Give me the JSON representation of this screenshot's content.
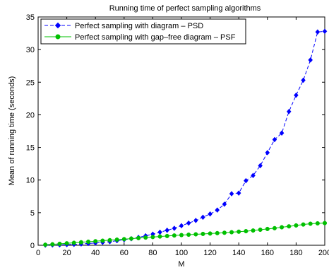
{
  "chart_data": {
    "type": "line",
    "title": "Running time of perfect sampling algorithms",
    "xlabel": "M",
    "ylabel": "Mean of running time (seconds)",
    "xlim": [
      0,
      200
    ],
    "ylim": [
      0,
      35
    ],
    "xticks": [
      "0",
      "20",
      "40",
      "60",
      "80",
      "100",
      "120",
      "140",
      "160",
      "180",
      "200"
    ],
    "yticks": [
      "0",
      "5",
      "10",
      "15",
      "20",
      "25",
      "30",
      "35"
    ],
    "grid": false,
    "legend_position": "top-left",
    "x": [
      5,
      10,
      15,
      20,
      25,
      30,
      35,
      40,
      45,
      50,
      55,
      60,
      65,
      70,
      75,
      80,
      85,
      90,
      95,
      100,
      105,
      110,
      115,
      120,
      125,
      130,
      135,
      140,
      145,
      150,
      155,
      160,
      165,
      170,
      175,
      180,
      185,
      190,
      195,
      200
    ],
    "series": [
      {
        "name": "Perfect sampling with diagram – PSD",
        "color": "#0000ff",
        "line_style": "dashed",
        "marker": "diamond",
        "values": [
          0.02,
          0.04,
          0.06,
          0.1,
          0.14,
          0.2,
          0.27,
          0.35,
          0.45,
          0.55,
          0.7,
          0.85,
          1.0,
          1.2,
          1.45,
          1.7,
          2.0,
          2.3,
          2.6,
          3.0,
          3.4,
          3.8,
          4.3,
          4.8,
          5.4,
          6.3,
          7.9,
          8.0,
          9.9,
          10.7,
          12.2,
          14.2,
          16.2,
          17.2,
          20.5,
          23.0,
          25.3,
          28.4,
          32.7,
          32.8
        ]
      },
      {
        "name": "Perfect sampling with gap–free diagram – PSF",
        "color": "#00c000",
        "line_style": "solid",
        "marker": "circle",
        "values": [
          0.08,
          0.15,
          0.22,
          0.3,
          0.38,
          0.46,
          0.54,
          0.62,
          0.7,
          0.78,
          0.86,
          0.94,
          1.02,
          1.1,
          1.18,
          1.26,
          1.34,
          1.42,
          1.5,
          1.56,
          1.62,
          1.68,
          1.74,
          1.8,
          1.86,
          1.92,
          2.0,
          2.08,
          2.16,
          2.26,
          2.38,
          2.5,
          2.62,
          2.76,
          2.9,
          3.04,
          3.18,
          3.3,
          3.36,
          3.4
        ]
      }
    ]
  }
}
